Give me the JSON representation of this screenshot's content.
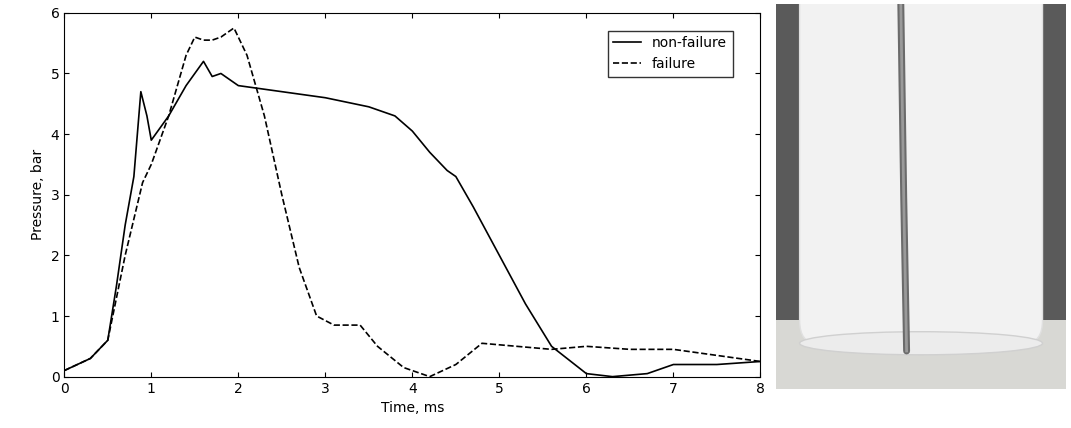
{
  "chart_data": {
    "type": "line",
    "x_label": "Time, ms",
    "y_label": "Pressure, bar",
    "xlim": [
      0,
      8
    ],
    "xticks": [
      0,
      1,
      2,
      3,
      4,
      5,
      6,
      7,
      8
    ],
    "ylim": [
      0,
      6
    ],
    "yticks": [
      0,
      1,
      2,
      3,
      4,
      5,
      6
    ],
    "grid": false,
    "legend": "upper right",
    "series": [
      {
        "name": "non-failure",
        "color": "#000000",
        "line_style": "solid",
        "x": [
          0,
          0.3,
          0.5,
          0.6,
          0.7,
          0.8,
          0.88,
          0.95,
          1.0,
          1.1,
          1.2,
          1.4,
          1.6,
          1.7,
          1.8,
          2.0,
          2.5,
          3.0,
          3.5,
          3.8,
          4.0,
          4.2,
          4.4,
          4.5,
          4.7,
          5.0,
          5.3,
          5.6,
          6.0,
          6.3,
          6.7,
          7.0,
          7.5,
          8.0
        ],
        "values": [
          0.1,
          0.3,
          0.6,
          1.5,
          2.5,
          3.3,
          4.7,
          4.3,
          3.9,
          4.1,
          4.3,
          4.8,
          5.2,
          4.95,
          5.0,
          4.8,
          4.7,
          4.6,
          4.45,
          4.3,
          4.05,
          3.7,
          3.4,
          3.3,
          2.8,
          2.0,
          1.2,
          0.5,
          0.05,
          0.0,
          0.05,
          0.2,
          0.2,
          0.25
        ]
      },
      {
        "name": "failure",
        "color": "#000000",
        "line_style": "dashed",
        "x": [
          0,
          0.3,
          0.5,
          0.7,
          0.9,
          1.0,
          1.2,
          1.4,
          1.5,
          1.6,
          1.7,
          1.8,
          1.95,
          2.1,
          2.3,
          2.5,
          2.7,
          2.9,
          3.1,
          3.4,
          3.6,
          3.9,
          4.2,
          4.5,
          4.8,
          5.2,
          5.6,
          6.0,
          6.5,
          7.0,
          7.5,
          8.0
        ],
        "values": [
          0.1,
          0.3,
          0.6,
          2.0,
          3.2,
          3.5,
          4.3,
          5.3,
          5.6,
          5.55,
          5.55,
          5.6,
          5.75,
          5.3,
          4.3,
          3.0,
          1.8,
          1.0,
          0.85,
          0.85,
          0.5,
          0.15,
          0.0,
          0.2,
          0.55,
          0.5,
          0.45,
          0.5,
          0.45,
          0.45,
          0.35,
          0.25
        ]
      }
    ]
  }
}
